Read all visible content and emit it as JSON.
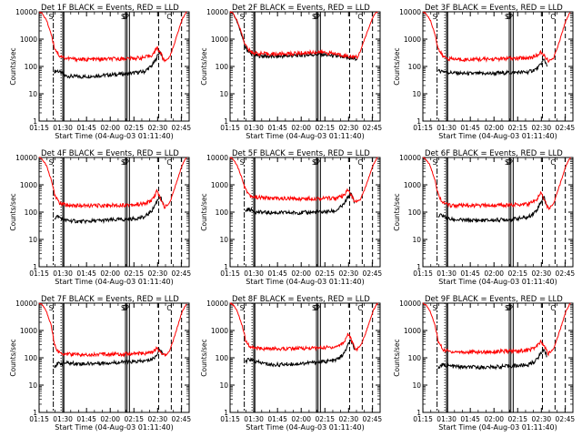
{
  "page": {
    "x_axis_title": "Start Time (04-Aug-03 01:11:40)",
    "y_axis_title": "Counts/sec",
    "x_tick_labels": [
      "01:15",
      "01:30",
      "01:45",
      "02:00",
      "02:15",
      "02:30",
      "02:45"
    ],
    "y_tick_labels": [
      "1",
      "10",
      "100",
      "1000",
      "10000"
    ],
    "overlay_letters": [
      "S",
      "S",
      "D",
      "P",
      "C",
      "F",
      "D",
      "D"
    ],
    "colors": {
      "events": "#000000",
      "lld": "#ff0000",
      "axes": "#000000",
      "background": "#ffffff"
    }
  },
  "chart_data": [
    {
      "type": "line",
      "title": "Det 1F BLACK = Events, RED = LLD",
      "xlabel": "Start Time (04-Aug-03 01:11:40)",
      "ylabel": "Counts/sec",
      "x_unit": "minutes after 01:11:40",
      "xlim": [
        3.3,
        98.3
      ],
      "ylim": [
        1,
        10000
      ],
      "y_scale": "log",
      "series": [
        {
          "name": "Events",
          "color": "#000000",
          "x": [
            13,
            15,
            20,
            30,
            45,
            60,
            70,
            75,
            77,
            79,
            80,
            81,
            82
          ],
          "values": [
            65,
            70,
            45,
            42,
            48,
            55,
            65,
            110,
            170,
            300,
            350,
            240,
            160
          ]
        },
        {
          "name": "LLD",
          "color": "#ff0000",
          "x": [
            3.3,
            5,
            8,
            11,
            13,
            16,
            20,
            30,
            45,
            60,
            70,
            74,
            76,
            78,
            79,
            80,
            81,
            82,
            83,
            86,
            89,
            92,
            94,
            96,
            97
          ],
          "values": [
            10000,
            9000,
            5000,
            1500,
            500,
            250,
            200,
            180,
            185,
            195,
            210,
            250,
            300,
            520,
            380,
            330,
            250,
            180,
            160,
            220,
            700,
            2500,
            5500,
            9000,
            10000
          ]
        }
      ]
    },
    {
      "type": "line",
      "title": "Det 2F BLACK = Events, RED = LLD",
      "xlabel": "Start Time (04-Aug-03 01:11:40)",
      "ylabel": "Counts/sec",
      "x_unit": "minutes after 01:11:40",
      "xlim": [
        3.3,
        98.3
      ],
      "ylim": [
        1,
        10000
      ],
      "y_scale": "log",
      "series": [
        {
          "name": "Events",
          "color": "#000000",
          "x": [
            3.3,
            5,
            8,
            11,
            13,
            16,
            20,
            30,
            45,
            60,
            70,
            78,
            82,
            84
          ],
          "values": [
            10000,
            9000,
            4000,
            1200,
            500,
            300,
            250,
            230,
            250,
            280,
            240,
            200,
            190,
            180
          ]
        },
        {
          "name": "LLD",
          "color": "#ff0000",
          "x": [
            3.3,
            5,
            8,
            11,
            13,
            16,
            20,
            30,
            45,
            60,
            70,
            78,
            82,
            84,
            86,
            89,
            92,
            94,
            96,
            97
          ],
          "values": [
            10000,
            9000,
            4500,
            1400,
            600,
            350,
            300,
            280,
            300,
            340,
            290,
            240,
            220,
            210,
            400,
            1200,
            3500,
            7000,
            9500,
            10000
          ]
        }
      ]
    },
    {
      "type": "line",
      "title": "Det 3F BLACK = Events, RED = LLD",
      "xlabel": "Start Time (04-Aug-03 01:11:40)",
      "ylabel": "Counts/sec",
      "x_unit": "minutes after 01:11:40",
      "xlim": [
        3.3,
        98.3
      ],
      "ylim": [
        1,
        10000
      ],
      "y_scale": "log",
      "series": [
        {
          "name": "Events",
          "color": "#000000",
          "x": [
            13,
            15,
            20,
            30,
            45,
            60,
            70,
            75,
            77,
            79,
            80,
            81,
            82
          ],
          "values": [
            65,
            70,
            60,
            55,
            55,
            60,
            62,
            80,
            100,
            150,
            180,
            140,
            110
          ]
        },
        {
          "name": "LLD",
          "color": "#ff0000",
          "x": [
            3.3,
            5,
            8,
            11,
            13,
            16,
            20,
            30,
            45,
            60,
            70,
            74,
            76,
            78,
            79,
            80,
            81,
            82,
            83,
            86,
            89,
            92,
            94,
            96,
            97
          ],
          "values": [
            10000,
            9000,
            5000,
            1500,
            450,
            230,
            190,
            180,
            185,
            195,
            205,
            230,
            260,
            320,
            280,
            250,
            220,
            180,
            150,
            200,
            600,
            2200,
            5000,
            8500,
            10000
          ]
        }
      ]
    },
    {
      "type": "line",
      "title": "Det 4F BLACK = Events, RED = LLD",
      "xlabel": "Start Time (04-Aug-03 01:11:40)",
      "ylabel": "Counts/sec",
      "x_unit": "minutes after 01:11:40",
      "xlim": [
        3.3,
        98.3
      ],
      "ylim": [
        1,
        10000
      ],
      "y_scale": "log",
      "series": [
        {
          "name": "Events",
          "color": "#000000",
          "x": [
            13,
            15,
            20,
            30,
            45,
            60,
            70,
            75,
            77,
            79,
            80,
            81,
            82
          ],
          "values": [
            60,
            70,
            50,
            45,
            50,
            55,
            65,
            120,
            200,
            330,
            400,
            250,
            170
          ]
        },
        {
          "name": "LLD",
          "color": "#ff0000",
          "x": [
            3.3,
            5,
            8,
            11,
            13,
            16,
            20,
            30,
            45,
            60,
            70,
            74,
            76,
            78,
            79,
            80,
            81,
            82,
            83,
            86,
            89,
            92,
            94,
            96,
            97
          ],
          "values": [
            10000,
            9000,
            5000,
            1500,
            450,
            220,
            180,
            170,
            175,
            185,
            200,
            260,
            350,
            600,
            420,
            340,
            250,
            180,
            150,
            220,
            700,
            2500,
            5500,
            9000,
            10000
          ]
        }
      ]
    },
    {
      "type": "line",
      "title": "Det 5F BLACK = Events, RED = LLD",
      "xlabel": "Start Time (04-Aug-03 01:11:40)",
      "ylabel": "Counts/sec",
      "x_unit": "minutes after 01:11:40",
      "xlim": [
        3.3,
        98.3
      ],
      "ylim": [
        1,
        10000
      ],
      "y_scale": "log",
      "series": [
        {
          "name": "Events",
          "color": "#000000",
          "x": [
            13,
            15,
            20,
            30,
            45,
            60,
            70,
            75,
            77,
            79,
            80,
            81,
            82
          ],
          "values": [
            110,
            130,
            100,
            95,
            95,
            100,
            110,
            180,
            280,
            450,
            500,
            320,
            200
          ]
        },
        {
          "name": "LLD",
          "color": "#ff0000",
          "x": [
            3.3,
            5,
            8,
            11,
            13,
            16,
            20,
            30,
            45,
            60,
            70,
            74,
            76,
            78,
            79,
            80,
            81,
            82,
            83,
            86,
            89,
            92,
            94,
            96,
            97
          ],
          "values": [
            10000,
            9000,
            5000,
            1600,
            700,
            400,
            350,
            320,
            310,
            320,
            330,
            360,
            420,
            700,
            520,
            420,
            320,
            260,
            220,
            300,
            800,
            2600,
            5500,
            9000,
            10000
          ]
        }
      ]
    },
    {
      "type": "line",
      "title": "Det 6F BLACK = Events, RED = LLD",
      "xlabel": "Start Time (04-Aug-03 01:11:40)",
      "ylabel": "Counts/sec",
      "x_unit": "minutes after 01:11:40",
      "xlim": [
        3.3,
        98.3
      ],
      "ylim": [
        1,
        10000
      ],
      "y_scale": "log",
      "series": [
        {
          "name": "Events",
          "color": "#000000",
          "x": [
            13,
            15,
            20,
            30,
            45,
            60,
            70,
            75,
            77,
            79,
            80,
            81,
            82
          ],
          "values": [
            65,
            80,
            55,
            50,
            50,
            55,
            65,
            110,
            180,
            300,
            350,
            230,
            150
          ]
        },
        {
          "name": "LLD",
          "color": "#ff0000",
          "x": [
            3.3,
            5,
            8,
            11,
            13,
            16,
            20,
            30,
            45,
            60,
            70,
            74,
            76,
            78,
            79,
            80,
            81,
            82,
            83,
            86,
            89,
            92,
            94,
            96,
            97
          ],
          "values": [
            10000,
            9000,
            5000,
            1500,
            450,
            220,
            180,
            170,
            175,
            185,
            200,
            250,
            320,
            550,
            400,
            320,
            240,
            170,
            140,
            200,
            650,
            2300,
            5200,
            8800,
            10000
          ]
        }
      ]
    },
    {
      "type": "line",
      "title": "Det 7F BLACK = Events, RED = LLD",
      "xlabel": "Start Time (04-Aug-03 01:11:40)",
      "ylabel": "Counts/sec",
      "x_unit": "minutes after 01:11:40",
      "xlim": [
        3.3,
        98.3
      ],
      "ylim": [
        1,
        10000
      ],
      "y_scale": "log",
      "series": [
        {
          "name": "Events",
          "color": "#000000",
          "x": [
            13,
            15,
            20,
            30,
            45,
            60,
            70,
            75,
            77,
            79,
            80,
            81,
            82
          ],
          "values": [
            50,
            60,
            65,
            60,
            65,
            70,
            75,
            90,
            110,
            180,
            220,
            160,
            110
          ]
        },
        {
          "name": "LLD",
          "color": "#ff0000",
          "x": [
            3.3,
            5,
            8,
            11,
            13,
            16,
            20,
            30,
            45,
            60,
            70,
            74,
            76,
            78,
            79,
            80,
            81,
            82,
            83,
            86,
            89,
            92,
            94,
            96,
            97
          ],
          "values": [
            10000,
            9000,
            5000,
            1500,
            300,
            150,
            140,
            130,
            135,
            140,
            145,
            155,
            170,
            220,
            190,
            170,
            150,
            130,
            120,
            180,
            600,
            2200,
            5000,
            8500,
            10000
          ]
        }
      ]
    },
    {
      "type": "line",
      "title": "Det 8F BLACK = Events, RED = LLD",
      "xlabel": "Start Time (04-Aug-03 01:11:40)",
      "ylabel": "Counts/sec",
      "x_unit": "minutes after 01:11:40",
      "xlim": [
        3.3,
        98.3
      ],
      "ylim": [
        1,
        10000
      ],
      "y_scale": "log",
      "series": [
        {
          "name": "Events",
          "color": "#000000",
          "x": [
            13,
            15,
            20,
            30,
            45,
            60,
            70,
            75,
            77,
            79,
            80,
            81,
            82
          ],
          "values": [
            65,
            90,
            70,
            55,
            60,
            70,
            80,
            130,
            220,
            380,
            420,
            280,
            170
          ]
        },
        {
          "name": "LLD",
          "color": "#ff0000",
          "x": [
            3.3,
            5,
            8,
            11,
            13,
            16,
            20,
            30,
            45,
            60,
            70,
            74,
            76,
            78,
            79,
            80,
            81,
            82,
            83,
            86,
            89,
            92,
            94,
            96,
            97
          ],
          "values": [
            10000,
            9000,
            5000,
            1500,
            450,
            250,
            220,
            210,
            220,
            230,
            250,
            320,
            420,
            800,
            600,
            450,
            330,
            240,
            200,
            280,
            750,
            2500,
            5500,
            9000,
            10000
          ]
        }
      ]
    },
    {
      "type": "line",
      "title": "Det 9F BLACK = Events, RED = LLD",
      "xlabel": "Start Time (04-Aug-03 01:11:40)",
      "ylabel": "Counts/sec",
      "x_unit": "minutes after 01:11:40",
      "xlim": [
        3.3,
        98.3
      ],
      "ylim": [
        1,
        10000
      ],
      "y_scale": "log",
      "series": [
        {
          "name": "Events",
          "color": "#000000",
          "x": [
            13,
            15,
            20,
            30,
            45,
            60,
            70,
            75,
            77,
            79,
            80,
            81,
            82
          ],
          "values": [
            40,
            55,
            50,
            45,
            45,
            50,
            55,
            80,
            120,
            180,
            220,
            150,
            100
          ]
        },
        {
          "name": "LLD",
          "color": "#ff0000",
          "x": [
            3.3,
            5,
            8,
            11,
            13,
            16,
            20,
            30,
            45,
            60,
            70,
            74,
            76,
            78,
            79,
            80,
            81,
            82,
            83,
            86,
            89,
            92,
            94,
            96,
            97
          ],
          "values": [
            10000,
            9000,
            5000,
            1500,
            400,
            200,
            170,
            160,
            165,
            175,
            190,
            230,
            280,
            400,
            320,
            270,
            220,
            160,
            140,
            210,
            650,
            2300,
            5200,
            8800,
            10000
          ]
        }
      ]
    }
  ]
}
